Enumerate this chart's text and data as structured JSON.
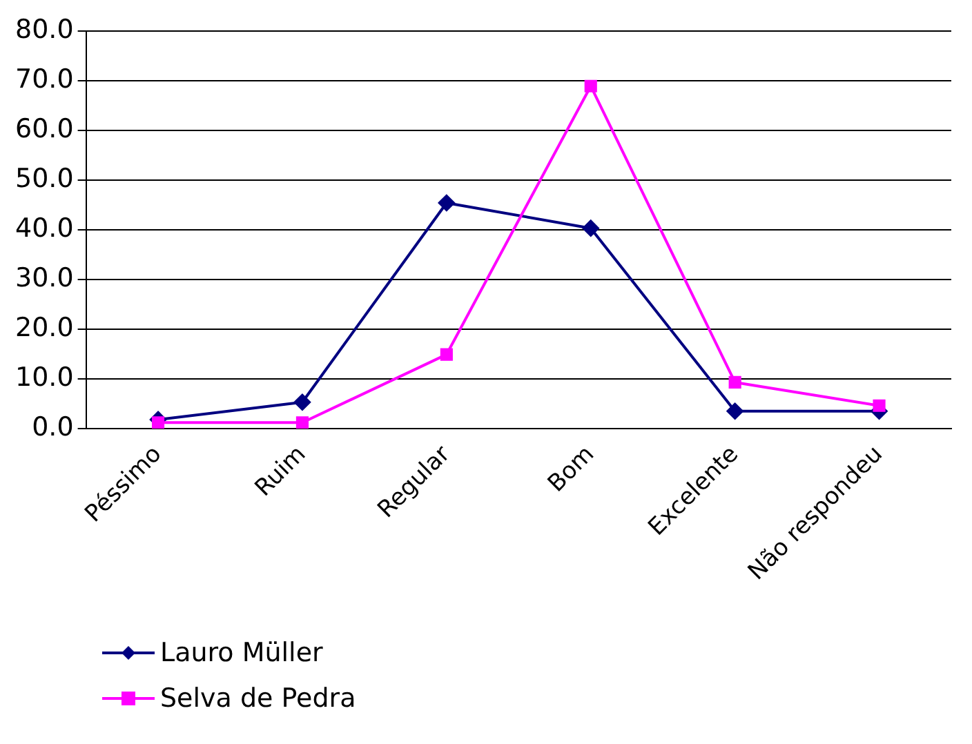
{
  "chart_data": {
    "type": "line",
    "categories": [
      "Péssimo",
      "Ruim",
      "Regular",
      "Bom",
      "Excelente",
      "Não respondeu"
    ],
    "series": [
      {
        "name": "Lauro Müller",
        "color": "#000080",
        "marker": "diamond",
        "values": [
          1.8,
          5.3,
          45.4,
          40.3,
          3.5,
          3.5
        ]
      },
      {
        "name": "Selva de Pedra",
        "color": "#ff00ff",
        "marker": "square",
        "values": [
          1.2,
          1.2,
          14.9,
          68.9,
          9.3,
          4.6
        ]
      }
    ],
    "ylim": [
      0,
      80
    ],
    "yticks": [
      {
        "value": 0,
        "label": "0.0"
      },
      {
        "value": 10,
        "label": "10.0"
      },
      {
        "value": 20,
        "label": "20.0"
      },
      {
        "value": 30,
        "label": "30.0"
      },
      {
        "value": 40,
        "label": "40.0"
      },
      {
        "value": 50,
        "label": "50.0"
      },
      {
        "value": 60,
        "label": "60.0"
      },
      {
        "value": 70,
        "label": "70.0"
      },
      {
        "value": 80,
        "label": "80.0"
      }
    ],
    "grid": "y",
    "legend": "bottom left"
  }
}
